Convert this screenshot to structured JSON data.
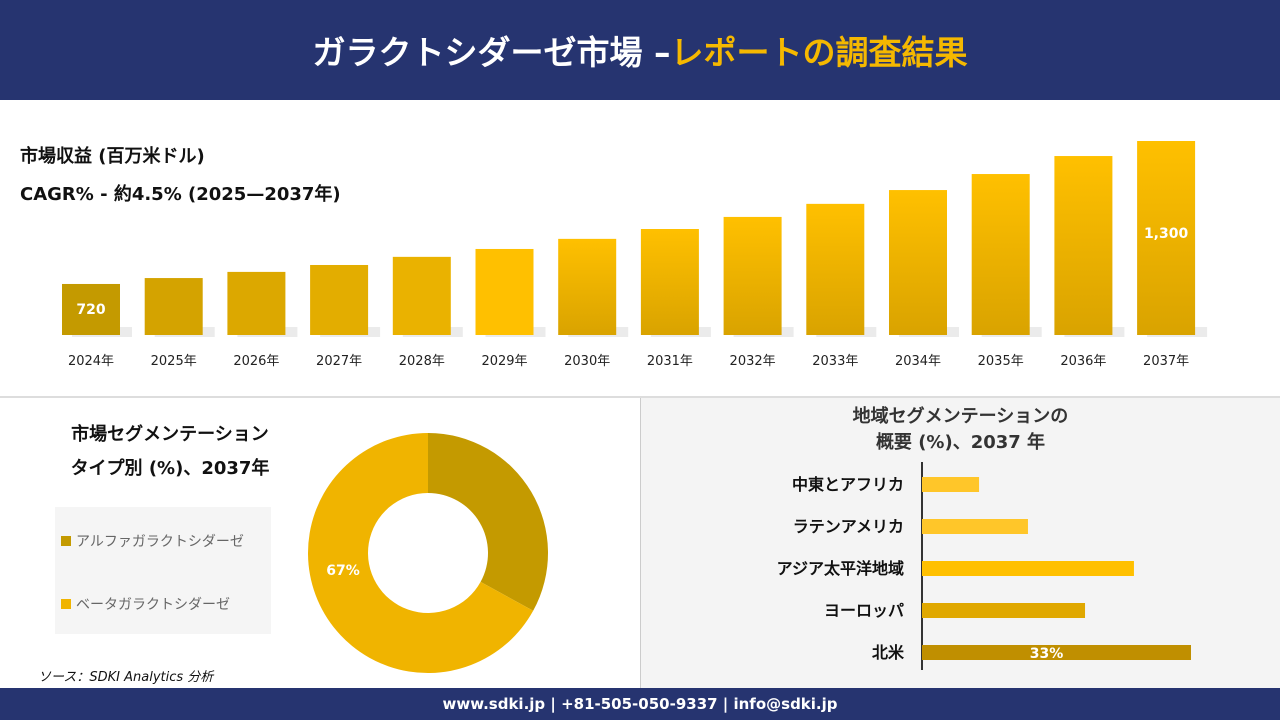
{
  "header": {
    "title_main": "ガラクトシダーゼ市場 –",
    "title_accent": "レポートの調査結果"
  },
  "colors": {
    "navy": "#263470",
    "accent": "#F5B800",
    "alpha": "#C49A00",
    "beta": "#F0B400"
  },
  "chart_data": [
    {
      "type": "bar",
      "title": "市場収益 (百万米ドル)",
      "subtitle": "CAGR% - 約4.5% (2025—2037年)",
      "categories": [
        "2024年",
        "2025年",
        "2026年",
        "2027年",
        "2028年",
        "2029年",
        "2030年",
        "2031年",
        "2032年",
        "2033年",
        "2034年",
        "2035年",
        "2036年",
        "2037年"
      ],
      "values": [
        720,
        744,
        769,
        797,
        830,
        862,
        903,
        943,
        992,
        1045,
        1101,
        1166,
        1239,
        1300
      ],
      "data_labels": {
        "0": "720",
        "13": "1,300"
      },
      "ylim": [
        513,
        1350
      ],
      "grid": false
    },
    {
      "type": "pie",
      "title": "市場セグメンテーション タイプ別 (%)、2037年",
      "title_line1": "市場セグメンテーション",
      "title_line2": "タイプ別 (%)、2037年",
      "labels": [
        "アルファガラクトシダーゼ",
        "ベータガラクトシダーゼ"
      ],
      "values": [
        33,
        67
      ],
      "data_labels": [
        "",
        "67%"
      ],
      "legend": "left"
    },
    {
      "type": "bar",
      "orientation": "horizontal",
      "title_line1": "地域セグメンテーションの",
      "title_line2": "概要 (%)、2037 年",
      "categories": [
        "中東とアフリカ",
        "ラテンアメリカ",
        "アジア太平洋地域",
        "ヨーロッパ",
        "北米"
      ],
      "values": [
        7,
        13,
        26,
        20,
        33
      ],
      "data_labels": [
        "",
        "",
        "",
        "",
        "33%"
      ],
      "colors": [
        "#FFC629",
        "#FFC629",
        "#FFC000",
        "#E0A800",
        "#C08F00"
      ]
    }
  ],
  "source": "ソース：SDKI Analytics 分析",
  "footer": "www.sdki.jp | +81-505-050-9337 | info@sdki.jp"
}
